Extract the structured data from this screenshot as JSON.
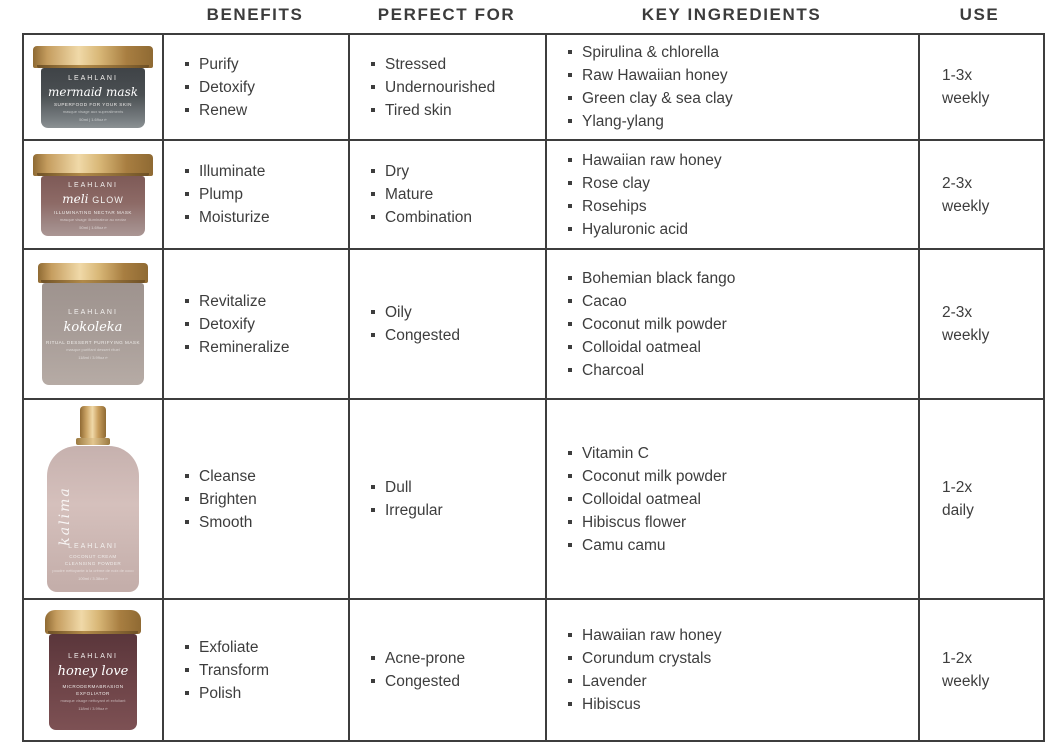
{
  "page": {
    "background": "#ffffff",
    "text_color": "#3d3d3d",
    "border_color": "#3d3d3d",
    "gold_accent": "#c59d5f"
  },
  "headers": {
    "benefits": "BENEFITS",
    "perfect_for": "PERFECT FOR",
    "key_ingredients": "KEY INGREDIENTS",
    "use": "USE"
  },
  "rows": [
    {
      "product": {
        "name": "Mermaid Mask",
        "brand": "LEAHLANI",
        "script_name": "mermaid mask",
        "subtitle": "SUPERFOOD FOR YOUR SKIN",
        "subtext": "masque visage aux superaliments",
        "size": "50ml | 1.69oz ℮",
        "body_style": "background:linear-gradient(180deg,#3f4347 0%,#4a4f52 45%,#777d80 85%,#8b9194 100%)"
      },
      "benefits": [
        "Purify",
        "Detoxify",
        "Renew"
      ],
      "perfect_for": [
        "Stressed",
        "Undernourished",
        "Tired skin"
      ],
      "key_ingredients": [
        "Spirulina & chlorella",
        "Raw Hawaiian honey",
        "Green clay & sea clay",
        "Ylang-ylang"
      ],
      "use": "1-3x\nweekly"
    },
    {
      "product": {
        "name": "Meli Glow",
        "brand": "LEAHLANI",
        "script_name": "meli",
        "script_suffix": "GLOW",
        "subtitle": "ILLUMINATING NECTAR MASK",
        "subtext": "masque visage illuminateur au nectar",
        "size": "50ml | 1.69oz ℮",
        "body_style": "background:linear-gradient(180deg,#7e5a57 0%,#8d6a66 45%,#a18b89 85%,#ab9694 100%)"
      },
      "benefits": [
        "Illuminate",
        "Plump",
        "Moisturize"
      ],
      "perfect_for": [
        "Dry",
        "Mature",
        "Combination"
      ],
      "key_ingredients": [
        "Hawaiian raw honey",
        "Rose clay",
        "Rosehips",
        "Hyaluronic acid"
      ],
      "use": "2-3x\nweekly"
    },
    {
      "product": {
        "name": "Kokoleka",
        "brand": "LEAHLANI",
        "script_name": "kokoleka",
        "subtitle": "RITUAL DESSERT PURIFYING MASK",
        "subtext": "masque purifiant dessert rituel",
        "size": "118ml / 3.99oz ℮",
        "body_style": "background:linear-gradient(180deg,#9e938e 0%,#a89d98 50%,#b6aba5 100%)"
      },
      "benefits": [
        "Revitalize",
        "Detoxify",
        "Remineralize"
      ],
      "perfect_for": [
        "Oily",
        "Congested"
      ],
      "key_ingredients": [
        "Bohemian black fango",
        "Cacao",
        "Coconut milk powder",
        "Colloidal oatmeal",
        "Charcoal"
      ],
      "use": "2-3x\nweekly"
    },
    {
      "product": {
        "name": "Kalima",
        "brand": "LEAHLANI",
        "script_name": "kalima",
        "subtitle": "COCONUT CREAM CLEANSING POWDER",
        "subtext": "poudre nettoyante à la crème de noix de coco",
        "size": "100ml / 3.38oz ℮",
        "body_style": "background:linear-gradient(180deg,#c6b1ae 0%,#d5c0bc 40%,#c3ada9 100%)"
      },
      "benefits": [
        "Cleanse",
        "Brighten",
        "Smooth"
      ],
      "perfect_for": [
        "Dull",
        "Irregular"
      ],
      "key_ingredients": [
        "Vitamin C",
        "Coconut milk powder",
        "Colloidal oatmeal",
        "Hibiscus flower",
        "Camu camu"
      ],
      "use": "1-2x\ndaily"
    },
    {
      "product": {
        "name": "Honey Love",
        "brand": "LEAHLANI",
        "script_name": "honey love",
        "subtitle": "MICRODERMABRASION EXFOLIATOR",
        "subtext": "masque visage nettoyant et exfoliant",
        "size": "118ml / 3.99oz ℮",
        "body_style": "background:linear-gradient(180deg,#5a363b 0%,#6d4347 50%,#7d5154 100%)"
      },
      "benefits": [
        "Exfoliate",
        "Transform",
        "Polish"
      ],
      "perfect_for": [
        "Acne-prone",
        "Congested"
      ],
      "key_ingredients": [
        "Hawaiian raw honey",
        "Corundum crystals",
        "Lavender",
        "Hibiscus"
      ],
      "use": "1-2x\nweekly"
    }
  ]
}
